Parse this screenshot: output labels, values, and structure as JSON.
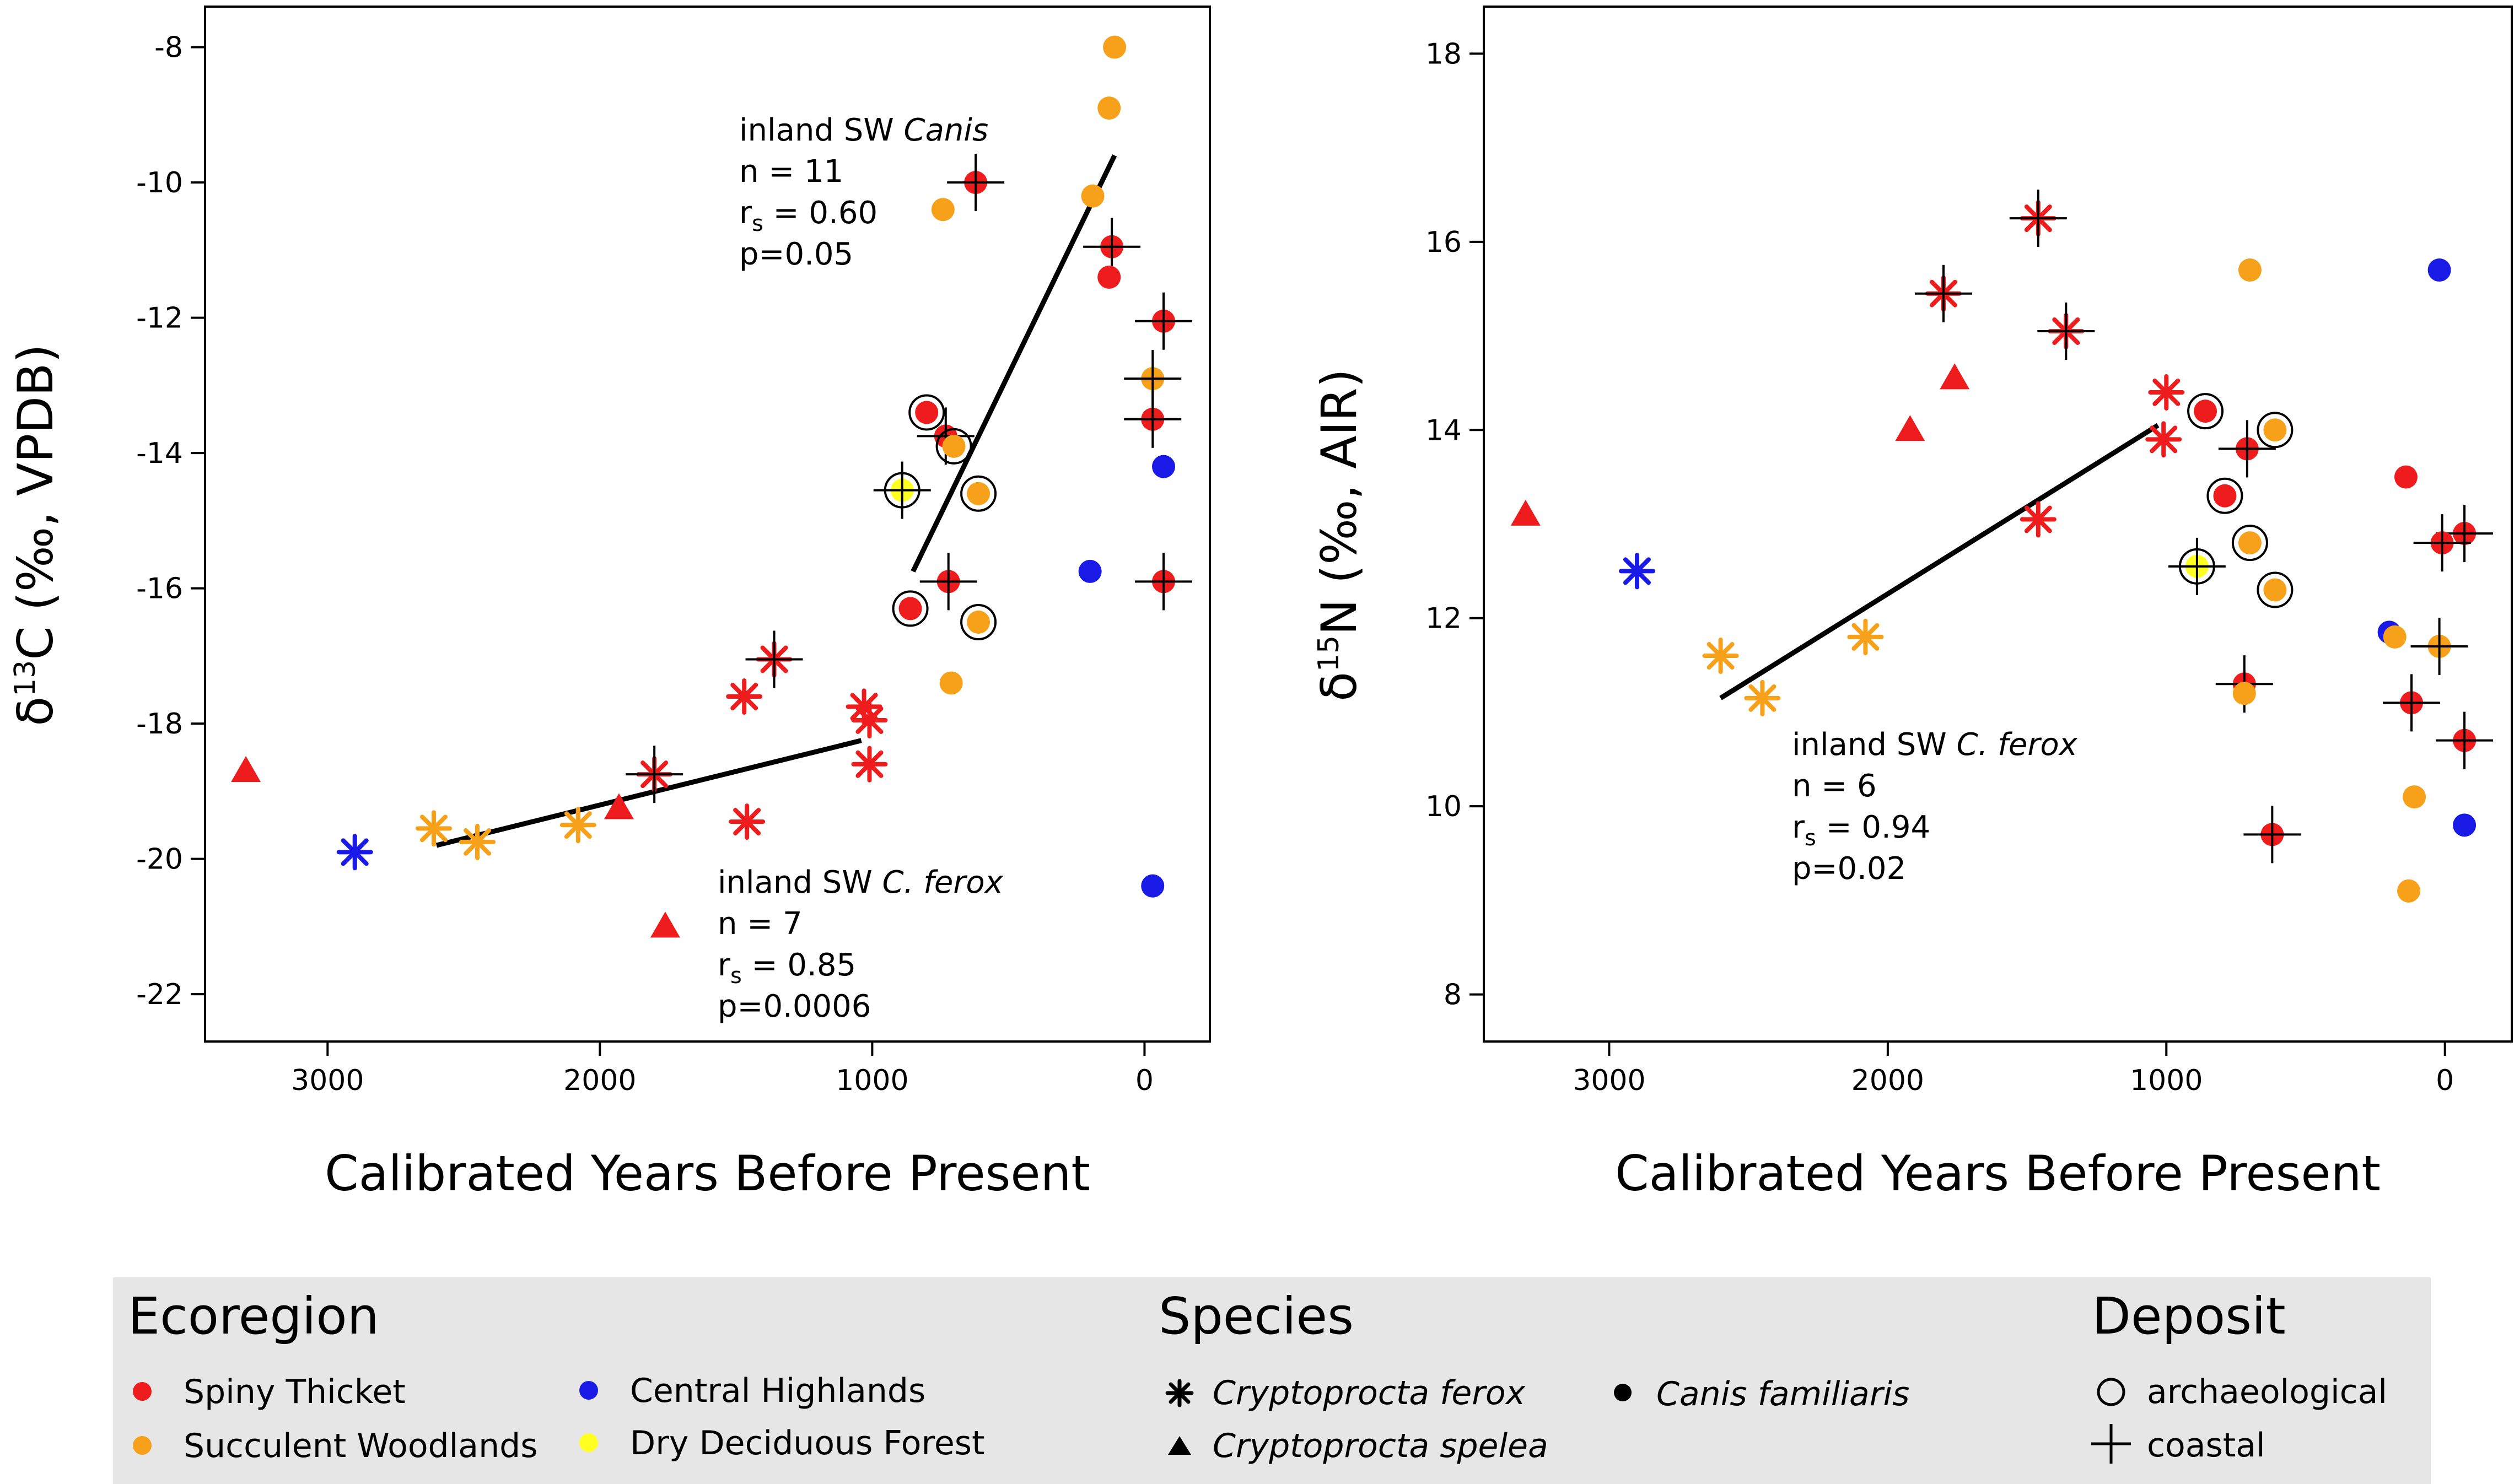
{
  "chart_data": [
    {
      "type": "scatter",
      "title": "",
      "xlabel": "Calibrated Years Before Present",
      "ylabel_main": "δ",
      "ylabel_sup": "13",
      "ylabel_rest": "C (‰, VPDB)",
      "xlim": [
        3450,
        -240
      ],
      "ylim": [
        -22.7,
        -7.4
      ],
      "xticks": [
        3000,
        2000,
        1000,
        0
      ],
      "yticks": [
        -8,
        -10,
        -12,
        -14,
        -16,
        -18,
        -20,
        -22
      ],
      "points": [
        {
          "x": 3300,
          "y": -18.7,
          "species": "spelea",
          "region": "SpinyThicket",
          "deposit": "none"
        },
        {
          "x": 1930,
          "y": -19.25,
          "species": "spelea",
          "region": "SpinyThicket",
          "deposit": "none"
        },
        {
          "x": 1760,
          "y": -21.0,
          "species": "spelea",
          "region": "SpinyThicket",
          "deposit": "none"
        },
        {
          "x": 2900,
          "y": -19.9,
          "species": "ferox",
          "region": "CentralHighlands",
          "deposit": "none"
        },
        {
          "x": 2610,
          "y": -19.55,
          "species": "ferox",
          "region": "SucculentWoodlands",
          "deposit": "none"
        },
        {
          "x": 2450,
          "y": -19.75,
          "species": "ferox",
          "region": "SucculentWoodlands",
          "deposit": "none"
        },
        {
          "x": 2080,
          "y": -19.5,
          "species": "ferox",
          "region": "SucculentWoodlands",
          "deposit": "none"
        },
        {
          "x": 1800,
          "y": -18.75,
          "species": "ferox",
          "region": "SpinyThicket",
          "deposit": "coastal"
        },
        {
          "x": 1470,
          "y": -17.6,
          "species": "ferox",
          "region": "SpinyThicket",
          "deposit": "none"
        },
        {
          "x": 1360,
          "y": -17.05,
          "species": "ferox",
          "region": "SpinyThicket",
          "deposit": "coastal"
        },
        {
          "x": 1460,
          "y": -19.45,
          "species": "ferox",
          "region": "SpinyThicket",
          "deposit": "none"
        },
        {
          "x": 1030,
          "y": -17.75,
          "species": "ferox",
          "region": "SpinyThicket",
          "deposit": "none"
        },
        {
          "x": 1010,
          "y": -17.95,
          "species": "ferox",
          "region": "SpinyThicket",
          "deposit": "none"
        },
        {
          "x": 1010,
          "y": -18.6,
          "species": "ferox",
          "region": "SpinyThicket",
          "deposit": "none"
        },
        {
          "x": 620,
          "y": -10.0,
          "species": "familiaris",
          "region": "SpinyThicket",
          "deposit": "coastal"
        },
        {
          "x": 740,
          "y": -10.4,
          "species": "familiaris",
          "region": "SucculentWoodlands",
          "deposit": "none"
        },
        {
          "x": 110,
          "y": -8.0,
          "species": "familiaris",
          "region": "SucculentWoodlands",
          "deposit": "none"
        },
        {
          "x": 130,
          "y": -8.9,
          "species": "familiaris",
          "region": "SucculentWoodlands",
          "deposit": "none"
        },
        {
          "x": 190,
          "y": -10.2,
          "species": "familiaris",
          "region": "SucculentWoodlands",
          "deposit": "none"
        },
        {
          "x": 120,
          "y": -10.95,
          "species": "familiaris",
          "region": "SpinyThicket",
          "deposit": "coastal"
        },
        {
          "x": 130,
          "y": -11.4,
          "species": "familiaris",
          "region": "SpinyThicket",
          "deposit": "none"
        },
        {
          "x": -70,
          "y": -12.05,
          "species": "familiaris",
          "region": "SpinyThicket",
          "deposit": "coastal"
        },
        {
          "x": -30,
          "y": -12.9,
          "species": "familiaris",
          "region": "SucculentWoodlands",
          "deposit": "coastal"
        },
        {
          "x": -30,
          "y": -13.5,
          "species": "familiaris",
          "region": "SpinyThicket",
          "deposit": "coastal"
        },
        {
          "x": -70,
          "y": -14.2,
          "species": "familiaris",
          "region": "CentralHighlands",
          "deposit": "none"
        },
        {
          "x": 800,
          "y": -13.4,
          "species": "familiaris",
          "region": "SpinyThicket",
          "deposit": "archaeological"
        },
        {
          "x": 730,
          "y": -13.75,
          "species": "familiaris",
          "region": "SpinyThicket",
          "deposit": "coastal"
        },
        {
          "x": 700,
          "y": -13.9,
          "species": "familiaris",
          "region": "SucculentWoodlands",
          "deposit": "archaeological"
        },
        {
          "x": 890,
          "y": -14.55,
          "species": "familiaris",
          "region": "DryDeciduous",
          "deposit": "both"
        },
        {
          "x": 610,
          "y": -14.6,
          "species": "familiaris",
          "region": "SucculentWoodlands",
          "deposit": "archaeological"
        },
        {
          "x": 200,
          "y": -15.75,
          "species": "familiaris",
          "region": "CentralHighlands",
          "deposit": "none"
        },
        {
          "x": 720,
          "y": -15.9,
          "species": "familiaris",
          "region": "SpinyThicket",
          "deposit": "coastal"
        },
        {
          "x": -70,
          "y": -15.9,
          "species": "familiaris",
          "region": "SpinyThicket",
          "deposit": "coastal"
        },
        {
          "x": 860,
          "y": -16.3,
          "species": "familiaris",
          "region": "SpinyThicket",
          "deposit": "archaeological"
        },
        {
          "x": 610,
          "y": -16.5,
          "species": "familiaris",
          "region": "SucculentWoodlands",
          "deposit": "archaeological"
        },
        {
          "x": 710,
          "y": -17.4,
          "species": "familiaris",
          "region": "SucculentWoodlands",
          "deposit": "none"
        },
        {
          "x": -30,
          "y": -20.4,
          "species": "familiaris",
          "region": "CentralHighlands",
          "deposit": "none"
        }
      ],
      "fit_lines": [
        {
          "name": "inland SW Canis",
          "x": [
            850,
            110
          ],
          "y": [
            -15.75,
            -9.6
          ]
        },
        {
          "name": "inland SW C. ferox",
          "x": [
            2600,
            1040
          ],
          "y": [
            -19.8,
            -18.25
          ]
        }
      ],
      "annotations": [
        {
          "label_plain": "inland SW ",
          "label_ital": "Canis",
          "n": "n = 11",
          "r_prefix": "r",
          "r_sub": "s",
          "r_value": " = 0.60",
          "p": "p=0.05"
        },
        {
          "label_plain": "inland SW ",
          "label_ital": "C. ferox",
          "n": "n = 7",
          "r_prefix": "r",
          "r_sub": "s",
          "r_value": " = 0.85",
          "p": "p=0.0006"
        }
      ]
    },
    {
      "type": "scatter",
      "title": "",
      "xlabel": "Calibrated Years Before Present",
      "ylabel_main": "δ",
      "ylabel_sup": "15",
      "ylabel_rest": "N (‰, AIR)",
      "xlim": [
        3450,
        -240
      ],
      "ylim": [
        7.5,
        18.5
      ],
      "xticks": [
        3000,
        2000,
        1000,
        0
      ],
      "yticks": [
        8,
        10,
        12,
        14,
        16,
        18
      ],
      "points": [
        {
          "x": 3300,
          "y": 13.1,
          "species": "spelea",
          "region": "SpinyThicket",
          "deposit": "none"
        },
        {
          "x": 1920,
          "y": 14.0,
          "species": "spelea",
          "region": "SpinyThicket",
          "deposit": "none"
        },
        {
          "x": 1760,
          "y": 14.55,
          "species": "spelea",
          "region": "SpinyThicket",
          "deposit": "none"
        },
        {
          "x": 2900,
          "y": 12.5,
          "species": "ferox",
          "region": "CentralHighlands",
          "deposit": "none"
        },
        {
          "x": 2600,
          "y": 11.6,
          "species": "ferox",
          "region": "SucculentWoodlands",
          "deposit": "none"
        },
        {
          "x": 2450,
          "y": 11.15,
          "species": "ferox",
          "region": "SucculentWoodlands",
          "deposit": "none"
        },
        {
          "x": 2080,
          "y": 11.8,
          "species": "ferox",
          "region": "SucculentWoodlands",
          "deposit": "none"
        },
        {
          "x": 1800,
          "y": 15.45,
          "species": "ferox",
          "region": "SpinyThicket",
          "deposit": "coastal"
        },
        {
          "x": 1460,
          "y": 16.25,
          "species": "ferox",
          "region": "SpinyThicket",
          "deposit": "coastal"
        },
        {
          "x": 1360,
          "y": 15.05,
          "species": "ferox",
          "region": "SpinyThicket",
          "deposit": "coastal"
        },
        {
          "x": 1460,
          "y": 13.05,
          "species": "ferox",
          "region": "SpinyThicket",
          "deposit": "none"
        },
        {
          "x": 1000,
          "y": 14.4,
          "species": "ferox",
          "region": "SpinyThicket",
          "deposit": "none"
        },
        {
          "x": 1010,
          "y": 13.9,
          "species": "ferox",
          "region": "SpinyThicket",
          "deposit": "none"
        },
        {
          "x": 860,
          "y": 14.2,
          "species": "familiaris",
          "region": "SpinyThicket",
          "deposit": "archaeological"
        },
        {
          "x": 790,
          "y": 13.3,
          "species": "familiaris",
          "region": "SpinyThicket",
          "deposit": "archaeological"
        },
        {
          "x": 710,
          "y": 13.8,
          "species": "familiaris",
          "region": "SpinyThicket",
          "deposit": "coastal"
        },
        {
          "x": 610,
          "y": 14.0,
          "species": "familiaris",
          "region": "SucculentWoodlands",
          "deposit": "archaeological"
        },
        {
          "x": 700,
          "y": 15.7,
          "species": "familiaris",
          "region": "SucculentWoodlands",
          "deposit": "none"
        },
        {
          "x": 700,
          "y": 12.8,
          "species": "familiaris",
          "region": "SucculentWoodlands",
          "deposit": "archaeological"
        },
        {
          "x": 890,
          "y": 12.55,
          "species": "familiaris",
          "region": "DryDeciduous",
          "deposit": "both"
        },
        {
          "x": 610,
          "y": 12.3,
          "species": "familiaris",
          "region": "SucculentWoodlands",
          "deposit": "archaeological"
        },
        {
          "x": 720,
          "y": 11.3,
          "species": "familiaris",
          "region": "SpinyThicket",
          "deposit": "coastal"
        },
        {
          "x": 720,
          "y": 11.2,
          "species": "familiaris",
          "region": "SucculentWoodlands",
          "deposit": "none"
        },
        {
          "x": 620,
          "y": 9.7,
          "species": "familiaris",
          "region": "SpinyThicket",
          "deposit": "coastal"
        },
        {
          "x": 20,
          "y": 15.7,
          "species": "familiaris",
          "region": "CentralHighlands",
          "deposit": "none"
        },
        {
          "x": 140,
          "y": 13.5,
          "species": "familiaris",
          "region": "SpinyThicket",
          "deposit": "none"
        },
        {
          "x": -70,
          "y": 12.9,
          "species": "familiaris",
          "region": "SpinyThicket",
          "deposit": "coastal"
        },
        {
          "x": 10,
          "y": 12.8,
          "species": "familiaris",
          "region": "SpinyThicket",
          "deposit": "coastal"
        },
        {
          "x": 200,
          "y": 11.85,
          "species": "familiaris",
          "region": "CentralHighlands",
          "deposit": "none"
        },
        {
          "x": 180,
          "y": 11.8,
          "species": "familiaris",
          "region": "SucculentWoodlands",
          "deposit": "none"
        },
        {
          "x": 20,
          "y": 11.7,
          "species": "familiaris",
          "region": "SucculentWoodlands",
          "deposit": "coastal"
        },
        {
          "x": 120,
          "y": 11.1,
          "species": "familiaris",
          "region": "SpinyThicket",
          "deposit": "coastal"
        },
        {
          "x": -70,
          "y": 10.7,
          "species": "familiaris",
          "region": "SpinyThicket",
          "deposit": "coastal"
        },
        {
          "x": 110,
          "y": 10.1,
          "species": "familiaris",
          "region": "SucculentWoodlands",
          "deposit": "none"
        },
        {
          "x": -70,
          "y": 9.8,
          "species": "familiaris",
          "region": "CentralHighlands",
          "deposit": "none"
        },
        {
          "x": 130,
          "y": 9.1,
          "species": "familiaris",
          "region": "SucculentWoodlands",
          "deposit": "none"
        }
      ],
      "fit_lines": [
        {
          "name": "inland SW C. ferox",
          "x": [
            2600,
            1030
          ],
          "y": [
            11.15,
            14.05
          ]
        }
      ],
      "annotations": [
        {
          "label_plain": "inland SW ",
          "label_ital": "C. ferox",
          "n": "n = 6",
          "r_prefix": "r",
          "r_sub": "s",
          "r_value": " = 0.94",
          "p": "p=0.02"
        }
      ]
    }
  ],
  "colors": {
    "SpinyThicket": "#ee1c1c",
    "SucculentWoodlands": "#f7a11a",
    "CentralHighlands": "#1a1ae6",
    "DryDeciduous": "#ffff22",
    "legend_bg": "#e6e6e6"
  },
  "legend": {
    "ecoregion_title": "Ecoregion",
    "ecoregions": [
      {
        "key": "SpinyThicket",
        "label": "Spiny Thicket"
      },
      {
        "key": "SucculentWoodlands",
        "label": "Succulent Woodlands"
      },
      {
        "key": "CentralHighlands",
        "label": "Central Highlands"
      },
      {
        "key": "DryDeciduous",
        "label": "Dry Deciduous Forest"
      }
    ],
    "species_title": "Species",
    "species": [
      {
        "key": "ferox",
        "label": "Cryptoprocta ferox",
        "icon": "asterisk-icon"
      },
      {
        "key": "spelea",
        "label": "Cryptoprocta spelea",
        "icon": "triangle-icon"
      },
      {
        "key": "familiaris",
        "label": "Canis familiaris",
        "icon": "dot-icon"
      }
    ],
    "deposit_title": "Deposit",
    "deposits": [
      {
        "key": "archaeological",
        "label": "archaeological",
        "icon": "open-circle-icon"
      },
      {
        "key": "coastal",
        "label": "coastal",
        "icon": "cross-icon"
      }
    ]
  }
}
